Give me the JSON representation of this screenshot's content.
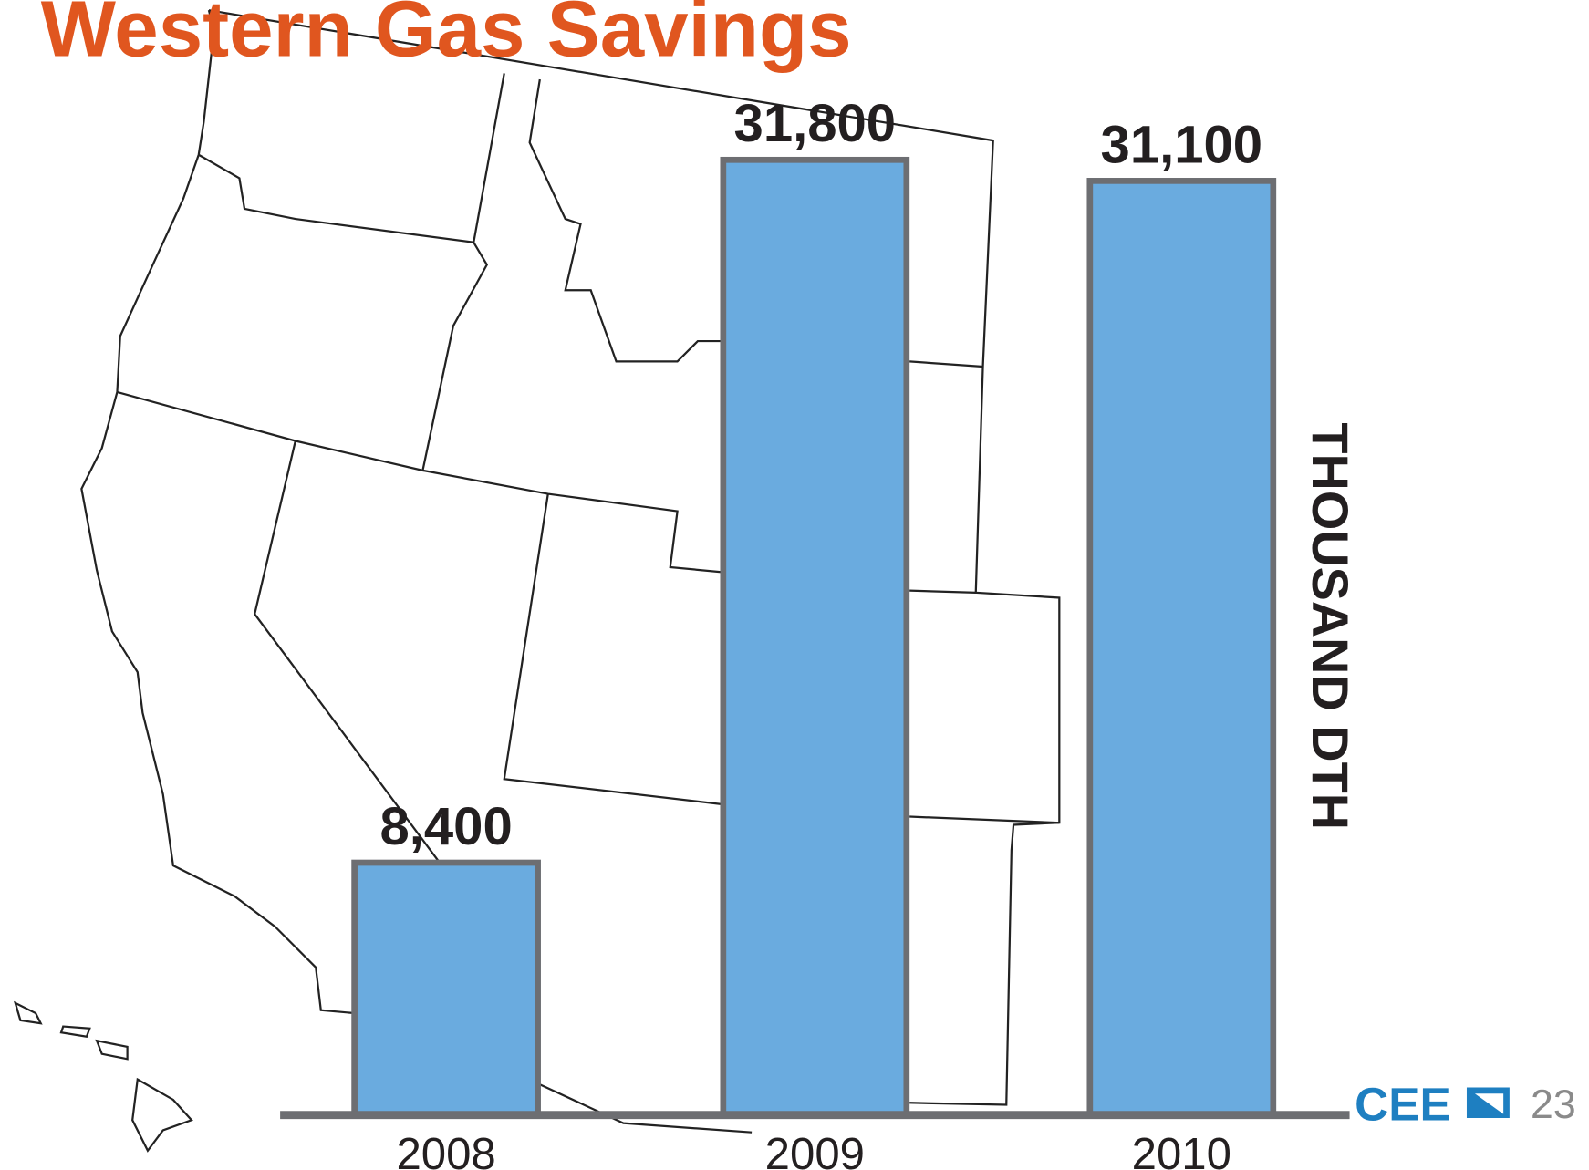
{
  "title": "Western Gas Savings",
  "page_number": "23",
  "logo": "CEE",
  "chart_data": {
    "type": "bar",
    "categories": [
      "2008",
      "2009",
      "2010"
    ],
    "values": [
      8400,
      31800,
      31100
    ],
    "value_labels": [
      "8,400",
      "31,800",
      "31,100"
    ],
    "ylabel": "THOUSAND DTH",
    "color": "#6aabdf"
  }
}
